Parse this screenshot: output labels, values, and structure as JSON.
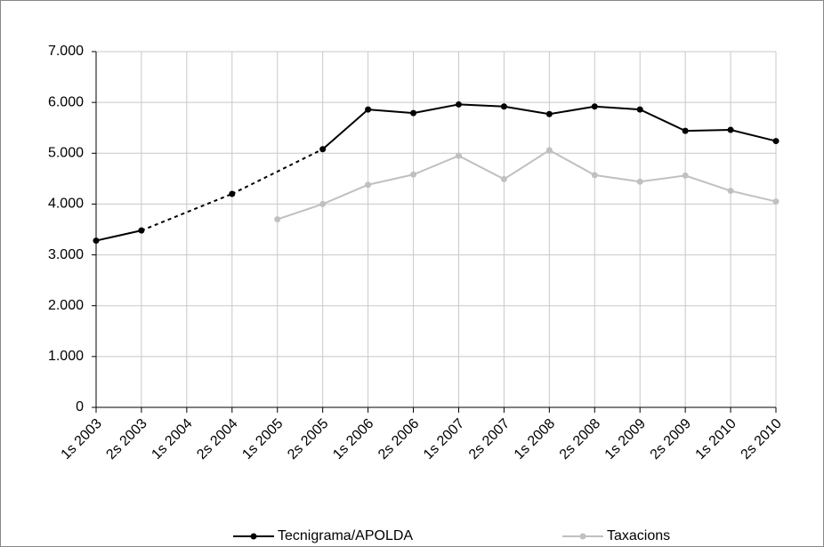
{
  "chart_data": {
    "type": "line",
    "categories": [
      "1s 2003",
      "2s 2003",
      "1s 2004",
      "2s 2004",
      "1s 2005",
      "2s 2005",
      "1s 2006",
      "2s 2006",
      "1s 2007",
      "2s 2007",
      "1s 2008",
      "2s 2008",
      "1s 2009",
      "2s 2009",
      "1s 2010",
      "2s 2010"
    ],
    "series": [
      {
        "name": "Tecnigrama/APOLDA",
        "color": "#000000",
        "dashed_gaps": true,
        "values": [
          3280,
          3480,
          null,
          4200,
          null,
          5080,
          5860,
          5790,
          5960,
          5920,
          5770,
          5920,
          5860,
          5440,
          5460,
          5240
        ]
      },
      {
        "name": "Taxacions",
        "color": "#c0c0c0",
        "dashed_gaps": false,
        "values": [
          null,
          null,
          null,
          null,
          3700,
          4000,
          4380,
          4580,
          4950,
          4490,
          5060,
          4570,
          4440,
          4560,
          4260,
          4050
        ]
      }
    ],
    "ylim": [
      0,
      7000
    ],
    "yticks": [
      0,
      {
        "value": 1000,
        "label": "1.000"
      },
      {
        "value": 2000,
        "label": "2.000"
      },
      {
        "value": 3000,
        "label": "3.000"
      },
      {
        "value": 4000,
        "label": "4.000"
      },
      {
        "value": 5000,
        "label": "5.000"
      },
      {
        "value": 6000,
        "label": "6.000"
      },
      {
        "value": 7000,
        "label": "7.000"
      }
    ],
    "grid": true,
    "legend": "bottom"
  }
}
